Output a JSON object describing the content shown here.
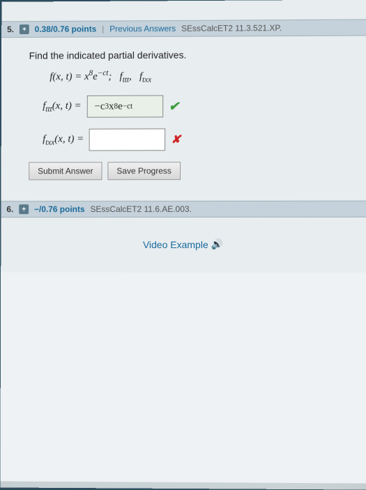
{
  "q5": {
    "number": "5.",
    "points": "0.38/0.76 points",
    "prev_answers": "Previous Answers",
    "source": "SEssCalcET2 11.3.521.XP.",
    "instruction": "Find the indicated partial derivatives.",
    "formula_html": "f(x, t) = x<sup>8</sup>e<sup>−ct</sup>; &nbsp; f<sub>ttt</sub>, &nbsp; f<sub>txx</sub>",
    "row1_label_html": "f<sub>ttt</sub>(x, t)  =",
    "row1_answer_html": "−c<sup>3</sup>x<sup>8</sup>e<sup>−ct</sup>",
    "row2_label_html": "f<sub>txx</sub>(x, t)  =",
    "submit_label": "Submit Answer",
    "save_label": "Save Progress"
  },
  "q6": {
    "number": "6.",
    "points": "−/0.76 points",
    "source": "SEssCalcET2 11.6.AE.003.",
    "video_label": "Video Example"
  }
}
